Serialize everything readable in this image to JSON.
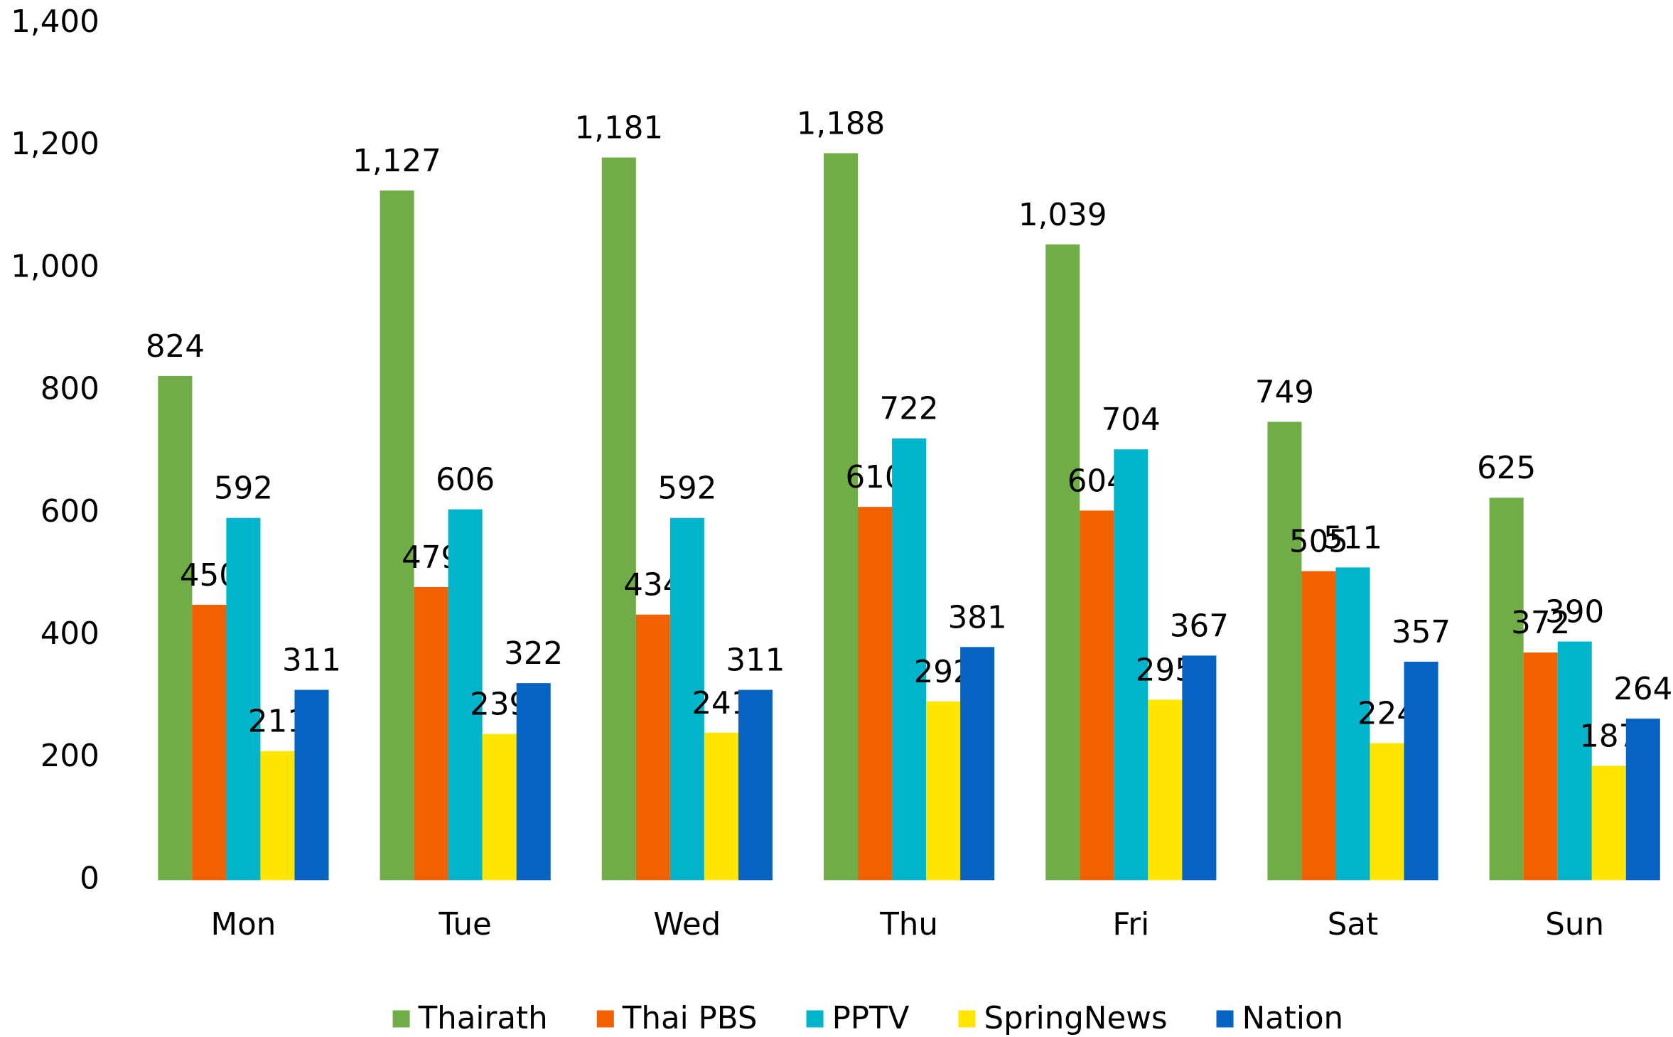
{
  "chart_data": {
    "type": "bar",
    "categories": [
      "Mon",
      "Tue",
      "Wed",
      "Thu",
      "Fri",
      "Sat",
      "Sun"
    ],
    "series": [
      {
        "name": "Thairath",
        "color": "#70ad47",
        "values": [
          824,
          1127,
          1181,
          1188,
          1039,
          749,
          625
        ],
        "value_labels": [
          "824",
          "1,127",
          "1,181",
          "1,188",
          "1,039",
          "749",
          "625"
        ]
      },
      {
        "name": "Thai PBS",
        "color": "#f26100",
        "values": [
          450,
          479,
          434,
          610,
          604,
          505,
          372
        ]
      },
      {
        "name": "PPTV",
        "color": "#00b4cc",
        "values": [
          592,
          606,
          592,
          722,
          704,
          511,
          390
        ]
      },
      {
        "name": "SpringNews",
        "color": "#ffe600",
        "values": [
          211,
          239,
          241,
          292,
          295,
          224,
          187
        ]
      },
      {
        "name": "Nation",
        "color": "#0563c1",
        "values": [
          311,
          322,
          311,
          381,
          367,
          357,
          264
        ]
      }
    ],
    "ylim": [
      0,
      1400
    ],
    "yticks": [
      0,
      200,
      400,
      600,
      800,
      {
        "value": 1000,
        "label": "1,000"
      },
      {
        "value": 1200,
        "label": "1,200"
      },
      {
        "value": 1400,
        "label": "1,400"
      }
    ],
    "grid": false,
    "legend": "bottom"
  }
}
